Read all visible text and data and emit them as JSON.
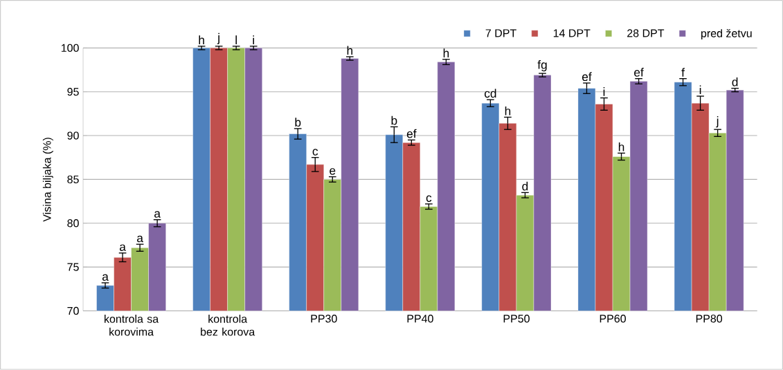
{
  "chart_data": {
    "type": "bar",
    "ylabel": "Visina biljaka (%)",
    "categories": [
      "kontrola sa korovima",
      "kontrola bez korova",
      "PP30",
      "PP40",
      "PP50",
      "PP60",
      "PP80"
    ],
    "series": [
      {
        "name": "7 DPT",
        "color": "#4f81bd",
        "values": [
          72.9,
          100,
          90.2,
          90.1,
          93.7,
          95.4,
          96.1
        ],
        "errors": [
          0.3,
          0.2,
          0.6,
          0.9,
          0.4,
          0.6,
          0.4
        ],
        "value_labels": [
          "a",
          "h",
          "b",
          "b",
          "cd",
          "ef",
          "f"
        ]
      },
      {
        "name": "14 DPT",
        "color": "#c0504d",
        "values": [
          76.1,
          100,
          86.7,
          89.2,
          91.4,
          93.6,
          93.7
        ],
        "errors": [
          0.5,
          0.2,
          0.8,
          0.3,
          0.7,
          0.7,
          0.8
        ],
        "value_labels": [
          "a",
          "j",
          "c",
          "ef",
          "h",
          "i",
          "i"
        ]
      },
      {
        "name": "28 DPT",
        "color": "#9bbb59",
        "values": [
          77.2,
          100,
          85.0,
          81.9,
          83.2,
          87.6,
          90.3
        ],
        "errors": [
          0.4,
          0.2,
          0.3,
          0.3,
          0.3,
          0.4,
          0.4
        ],
        "value_labels": [
          "a",
          "l",
          "e",
          "c",
          "d",
          "h",
          "j"
        ]
      },
      {
        "name": "pred žetvu",
        "color": "#8064a2",
        "values": [
          80.0,
          100,
          98.8,
          98.4,
          96.9,
          96.2,
          95.2
        ],
        "errors": [
          0.4,
          0.2,
          0.2,
          0.3,
          0.2,
          0.3,
          0.2
        ],
        "value_labels": [
          "a",
          "i",
          "h",
          "h",
          "fg",
          "ef",
          "d"
        ]
      }
    ],
    "ylim": [
      70,
      100
    ],
    "yticks": [
      70,
      75,
      80,
      85,
      90,
      95,
      100
    ],
    "grid": "y",
    "legend": "top right"
  }
}
